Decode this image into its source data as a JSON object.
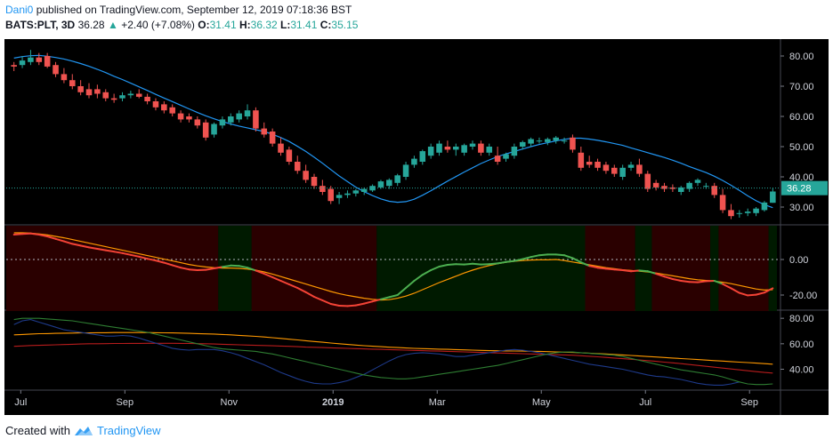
{
  "header": {
    "author": "Dani0",
    "published_text": "published on TradingView.com, September 12, 2019 07:18:36 BST",
    "symbol_interval": "BATS:PLT, 3D",
    "last": "36.28",
    "change": "+2.40 (+7.08%)",
    "o_label": "O:",
    "o": "31.41",
    "h_label": "H:",
    "h": "36.32",
    "l_label": "L:",
    "l": "31.41",
    "c_label": "C:",
    "c": "35.15"
  },
  "footer": {
    "created_with": "Created with",
    "brand": "TradingView"
  },
  "colors": {
    "up": "#26a69a",
    "down": "#ef5350",
    "ma": "#2196f3",
    "bg": "#000000",
    "osc_main_up": "#4caf50",
    "osc_main_down": "#f44336",
    "osc_signal": "#ff9800",
    "bear_zone": "#2a0000",
    "bull_zone": "#001a00"
  },
  "chart_data": [
    {
      "type": "candlestick",
      "x_ticks": [
        "Jul",
        "Sep",
        "Nov",
        "2019",
        "Mar",
        "May",
        "Jul",
        "Sep"
      ],
      "y_ticks": [
        "80.00",
        "70.00",
        "60.00",
        "50.00",
        "40.00",
        "30.00"
      ],
      "ylim": [
        25,
        85
      ],
      "price_label": "36.28",
      "candles": [
        [
          77,
          78,
          75,
          76.5
        ],
        [
          77,
          80,
          76,
          78.5
        ],
        [
          78,
          82,
          77,
          79.5
        ],
        [
          79.5,
          81,
          77,
          78
        ],
        [
          80,
          81,
          76,
          76.5
        ],
        [
          77,
          78,
          73,
          74
        ],
        [
          74,
          76,
          71,
          72
        ],
        [
          72,
          74,
          69,
          70
        ],
        [
          70,
          72,
          67,
          68
        ],
        [
          69,
          71,
          66,
          67
        ],
        [
          69,
          70.5,
          66,
          67.5
        ],
        [
          68,
          69,
          65,
          66
        ],
        [
          66,
          67.5,
          64.5,
          65.5
        ],
        [
          66,
          68,
          65,
          67
        ],
        [
          67,
          68.5,
          66,
          67.5
        ],
        [
          67.5,
          69,
          66,
          66.5
        ],
        [
          66.5,
          67.5,
          64,
          65
        ],
        [
          65,
          66,
          62,
          63
        ],
        [
          64,
          65,
          61,
          62
        ],
        [
          63,
          64,
          60,
          61
        ],
        [
          61,
          62,
          58,
          59
        ],
        [
          60,
          61,
          58,
          59
        ],
        [
          59,
          60,
          56,
          57
        ],
        [
          58,
          59,
          52,
          53
        ],
        [
          54,
          58,
          53,
          57.5
        ],
        [
          57,
          60,
          56,
          59
        ],
        [
          58,
          61,
          57,
          60
        ],
        [
          59,
          62,
          58,
          61
        ],
        [
          60,
          64,
          59,
          62
        ],
        [
          62,
          63,
          55,
          56
        ],
        [
          56,
          58,
          53,
          54
        ],
        [
          55,
          56,
          50,
          51
        ],
        [
          51,
          53,
          47,
          48
        ],
        [
          49,
          50,
          44,
          45
        ],
        [
          45,
          47,
          41,
          42
        ],
        [
          42,
          44,
          38,
          39
        ],
        [
          40,
          41,
          36,
          37
        ],
        [
          37,
          39,
          34,
          35
        ],
        [
          36,
          37,
          31,
          32
        ],
        [
          33,
          35,
          31,
          34
        ],
        [
          34,
          35.5,
          33,
          34.5
        ],
        [
          34.5,
          36,
          33.5,
          35.5
        ],
        [
          35,
          36.5,
          34,
          36
        ],
        [
          35.5,
          37.5,
          35,
          37
        ],
        [
          36.5,
          39,
          36,
          38.5
        ],
        [
          37,
          39.5,
          36,
          39
        ],
        [
          38,
          41,
          37,
          40.5
        ],
        [
          40,
          45,
          39,
          44
        ],
        [
          44,
          47,
          43,
          46
        ],
        [
          45,
          49,
          44,
          48.5
        ],
        [
          47,
          51,
          46,
          50
        ],
        [
          48,
          52,
          47,
          51
        ],
        [
          50,
          52,
          48,
          49
        ],
        [
          49,
          51,
          47,
          50
        ],
        [
          48,
          51,
          47,
          50.5
        ],
        [
          50,
          52,
          49,
          51
        ],
        [
          51,
          52,
          47,
          48
        ],
        [
          48,
          51,
          47,
          50
        ],
        [
          47,
          50,
          44,
          45
        ],
        [
          46,
          48,
          45,
          47.5
        ],
        [
          47,
          51,
          46,
          50
        ],
        [
          50,
          52,
          49,
          51.5
        ],
        [
          51,
          53,
          50,
          52.5
        ],
        [
          52,
          53,
          51,
          52
        ],
        [
          51.5,
          53,
          50.5,
          52.5
        ],
        [
          52,
          53.5,
          51,
          53
        ],
        [
          52,
          53,
          51,
          52
        ],
        [
          53,
          54,
          48,
          49
        ],
        [
          48,
          50,
          42,
          43
        ],
        [
          45,
          47,
          43,
          44
        ],
        [
          45,
          46,
          42,
          43
        ],
        [
          44,
          45,
          41,
          42
        ],
        [
          43,
          44,
          40,
          41
        ],
        [
          40,
          44,
          39,
          43
        ],
        [
          43,
          45,
          42,
          44
        ],
        [
          44,
          46,
          40,
          41
        ],
        [
          41,
          42,
          35,
          36
        ],
        [
          38,
          39,
          35.5,
          36.5
        ],
        [
          37,
          38,
          35,
          36
        ],
        [
          36.5,
          37.5,
          35,
          36
        ],
        [
          35,
          37,
          34,
          36.5
        ],
        [
          36,
          38.5,
          35,
          38
        ],
        [
          38,
          39.5,
          37,
          39
        ],
        [
          37,
          38,
          36,
          37
        ],
        [
          37,
          38,
          33,
          34
        ],
        [
          34,
          36,
          28,
          29
        ],
        [
          29,
          31,
          26,
          27
        ],
        [
          28,
          29,
          26.5,
          28
        ],
        [
          28,
          29.5,
          27,
          28.5
        ],
        [
          28,
          30,
          27,
          29.5
        ],
        [
          29,
          32,
          28.5,
          31.5
        ],
        [
          31.41,
          36.32,
          31.41,
          35.15
        ]
      ],
      "ma": [
        79.3,
        79.8,
        80.1,
        80.2,
        79.9,
        79.5,
        79,
        78.3,
        77.5,
        76.6,
        75.6,
        74.5,
        73.3,
        72.2,
        71,
        69.8,
        68.6,
        67.3,
        66.1,
        64.9,
        63.7,
        62.5,
        61.3,
        60.2,
        59.2,
        58.3,
        57.5,
        56.8,
        56.2,
        55.6,
        55,
        54.1,
        53,
        51.7,
        50.1,
        48.4,
        46.5,
        44.5,
        42.4,
        40.3,
        38.4,
        36.6,
        35.1,
        33.8,
        32.7,
        31.9,
        31.6,
        31.8,
        32.6,
        33.9,
        35.4,
        37,
        38.6,
        40.1,
        41.6,
        43,
        44.4,
        45.6,
        46.7,
        47.6,
        48.4,
        49.2,
        50,
        50.7,
        51.3,
        51.9,
        52.4,
        52.8,
        52.8,
        52.5,
        52.1,
        51.6,
        51,
        50.4,
        49.6,
        48.8,
        48,
        47.2,
        46.4,
        45.5,
        44.5,
        43.4,
        42.4,
        41.4,
        40.2,
        38.8,
        37.2,
        35.5,
        33.7,
        32.1,
        30.8,
        29.8
      ],
      "osc": {
        "ylim": [
          -28,
          18
        ],
        "y_ticks": [
          "0.00",
          "-20.00"
        ],
        "main": [
          14,
          14.4,
          14.6,
          14,
          13,
          11.6,
          10.2,
          8.8,
          7.8,
          6.8,
          6,
          5.2,
          4.4,
          3.6,
          2.6,
          1.6,
          0.4,
          -0.6,
          -1.8,
          -3.2,
          -4.6,
          -5.6,
          -6,
          -5.8,
          -5,
          -4.2,
          -3.4,
          -3.6,
          -4.6,
          -6.2,
          -8,
          -10,
          -12,
          -14,
          -16,
          -18.4,
          -21,
          -23,
          -25,
          -26,
          -26.2,
          -25.8,
          -24.8,
          -23.6,
          -22.4,
          -21.2,
          -20,
          -16,
          -12,
          -8.6,
          -6,
          -4,
          -3,
          -2.6,
          -2.8,
          -2.4,
          -2.8,
          -2.6,
          -2.2,
          -1.4,
          -0.8,
          0.2,
          1.4,
          2.4,
          2.8,
          2.8,
          2.4,
          0.8,
          -1.6,
          -3.6,
          -4.6,
          -5.2,
          -5.6,
          -6,
          -6.6,
          -6.2,
          -6.6,
          -8,
          -9.6,
          -11,
          -12,
          -12.6,
          -12.8,
          -12.2,
          -12,
          -13.8,
          -16.2,
          -18.8,
          -20.2,
          -19.8,
          -18.6,
          -16.2
        ],
        "signal": [
          15,
          15,
          14.8,
          14.4,
          13.8,
          13,
          12.2,
          11.2,
          10.2,
          9.2,
          8.2,
          7.2,
          6.2,
          5.2,
          4.2,
          3.2,
          2.2,
          1.2,
          0.2,
          -0.8,
          -1.8,
          -2.8,
          -3.6,
          -4.2,
          -4.6,
          -4.8,
          -4.8,
          -5,
          -5.4,
          -6,
          -7,
          -8.2,
          -9.6,
          -11,
          -12.4,
          -13.8,
          -15.2,
          -16.6,
          -18,
          -19.2,
          -20.2,
          -21,
          -21.8,
          -22.4,
          -22.8,
          -22.6,
          -21.8,
          -20.6,
          -19,
          -17,
          -15,
          -13,
          -11.2,
          -9.4,
          -7.6,
          -6,
          -4.6,
          -3.4,
          -2.4,
          -1.6,
          -1,
          -0.6,
          -0.3,
          -0.2,
          -0.2,
          0,
          -0.6,
          -1.4,
          -2.2,
          -3,
          -3.8,
          -4.6,
          -5.2,
          -5.8,
          -6.2,
          -6.6,
          -7,
          -7.6,
          -8.4,
          -9.2,
          -10,
          -10.8,
          -11.4,
          -11.8,
          -12.2,
          -12.8,
          -13.6,
          -14.6,
          -15.6,
          -16.6,
          -17.2,
          -17
        ]
      },
      "rsi_panel": {
        "ylim": [
          25,
          85
        ],
        "y_ticks": [
          "80.00",
          "60.00",
          "40.00"
        ],
        "green": [
          79,
          80,
          80,
          80,
          79.5,
          79,
          78.5,
          78,
          77,
          76,
          75,
          74,
          73,
          72,
          71,
          70,
          69,
          67.5,
          66,
          64.5,
          63,
          61.5,
          60,
          58.5,
          57,
          56,
          55.5,
          55,
          54.5,
          54,
          53,
          52,
          50.5,
          49,
          47.5,
          46,
          44.5,
          43,
          41.5,
          40,
          38.5,
          37,
          35.5,
          34.5,
          33.5,
          33,
          32.5,
          32.5,
          33,
          34,
          35,
          36,
          37,
          38,
          39,
          40,
          41,
          42,
          43,
          44.5,
          46,
          47.5,
          49,
          50.5,
          52,
          53,
          53.5,
          53.5,
          53,
          52.5,
          52,
          51.5,
          51,
          50,
          48.5,
          47,
          45.5,
          44,
          42.5,
          41,
          39.5,
          38.5,
          37.5,
          36.5,
          35.5,
          34,
          32,
          30,
          28.5,
          28,
          28,
          28.5
        ],
        "blue": [
          75,
          78,
          79,
          77,
          75,
          73,
          71,
          70,
          69,
          68,
          67,
          66,
          66,
          66.5,
          66,
          64.5,
          62.5,
          60.5,
          58.5,
          56.5,
          55.5,
          55,
          55.5,
          55.5,
          55.5,
          54.5,
          53,
          51,
          48.5,
          46,
          43.5,
          40.5,
          37.5,
          35,
          32.5,
          30.5,
          29,
          28.5,
          28.5,
          29.5,
          31,
          33.5,
          36,
          39.5,
          43,
          46.5,
          49.5,
          51.5,
          52.5,
          53,
          52.5,
          52,
          51,
          50,
          50,
          51,
          52,
          53,
          54,
          55,
          55.5,
          55,
          54,
          53,
          51.5,
          50,
          48.5,
          47,
          45.5,
          44,
          43,
          42,
          41,
          40,
          38.5,
          37,
          35.5,
          34.5,
          34,
          33,
          32,
          30.5,
          29,
          28,
          27.5,
          27.5,
          28.5,
          30
        ],
        "red": [
          58,
          58.3,
          58.6,
          58.8,
          59,
          59.2,
          59.4,
          59.6,
          59.8,
          60,
          60,
          60.1,
          60.2,
          60.2,
          60.3,
          60.3,
          60.4,
          60.4,
          60.4,
          60.4,
          60.3,
          60.2,
          60.1,
          60,
          59.8,
          59.6,
          59.4,
          59.2,
          59,
          58.8,
          58.6,
          58.4,
          58.2,
          58,
          57.7,
          57.4,
          57.2,
          57,
          56.8,
          56.6,
          56.4,
          56.2,
          56,
          55.8,
          55.6,
          55.4,
          55.2,
          55,
          54.8,
          54.6,
          54.4,
          54.2,
          54,
          53.8,
          53.6,
          53.4,
          53.2,
          53,
          52.8,
          52.6,
          52.4,
          52.2,
          52,
          51.8,
          51.6,
          51.4,
          51.2,
          51,
          50.6,
          50.2,
          49.8,
          49.3,
          48.8,
          48.3,
          47.8,
          47.3,
          46.8,
          46.2,
          45.6,
          45,
          44.4,
          43.7,
          43,
          42.3,
          41.6,
          40.9,
          40.2,
          39.5,
          38.8,
          38.1,
          37.5,
          37
        ],
        "orange": [
          67,
          67.3,
          67.6,
          67.9,
          68,
          68.2,
          68.3,
          68.4,
          68.5,
          68.6,
          68.7,
          68.7,
          68.8,
          68.8,
          68.8,
          68.8,
          68.8,
          68.7,
          68.6,
          68.5,
          68.4,
          68.2,
          68,
          67.8,
          67.6,
          67.3,
          67,
          66.6,
          66.2,
          65.8,
          65.3,
          64.8,
          64.2,
          63.6,
          63,
          62.4,
          61.8,
          61.2,
          60.6,
          60,
          59.5,
          59,
          58.5,
          58.1,
          57.7,
          57.3,
          57,
          56.7,
          56.4,
          56.2,
          56,
          55.8,
          55.6,
          55.4,
          55.2,
          55,
          54.8,
          54.6,
          54.5,
          54.4,
          54.3,
          54.2,
          54.1,
          54,
          53.8,
          53.6,
          53.4,
          53.2,
          52.9,
          52.6,
          52.3,
          52,
          51.6,
          51.2,
          50.8,
          50.4,
          50,
          49.6,
          49.2,
          48.8,
          48.4,
          48,
          47.6,
          47.2,
          46.8,
          46.4,
          46,
          45.6,
          45.2,
          44.8,
          44.4,
          44
        ]
      }
    }
  ]
}
